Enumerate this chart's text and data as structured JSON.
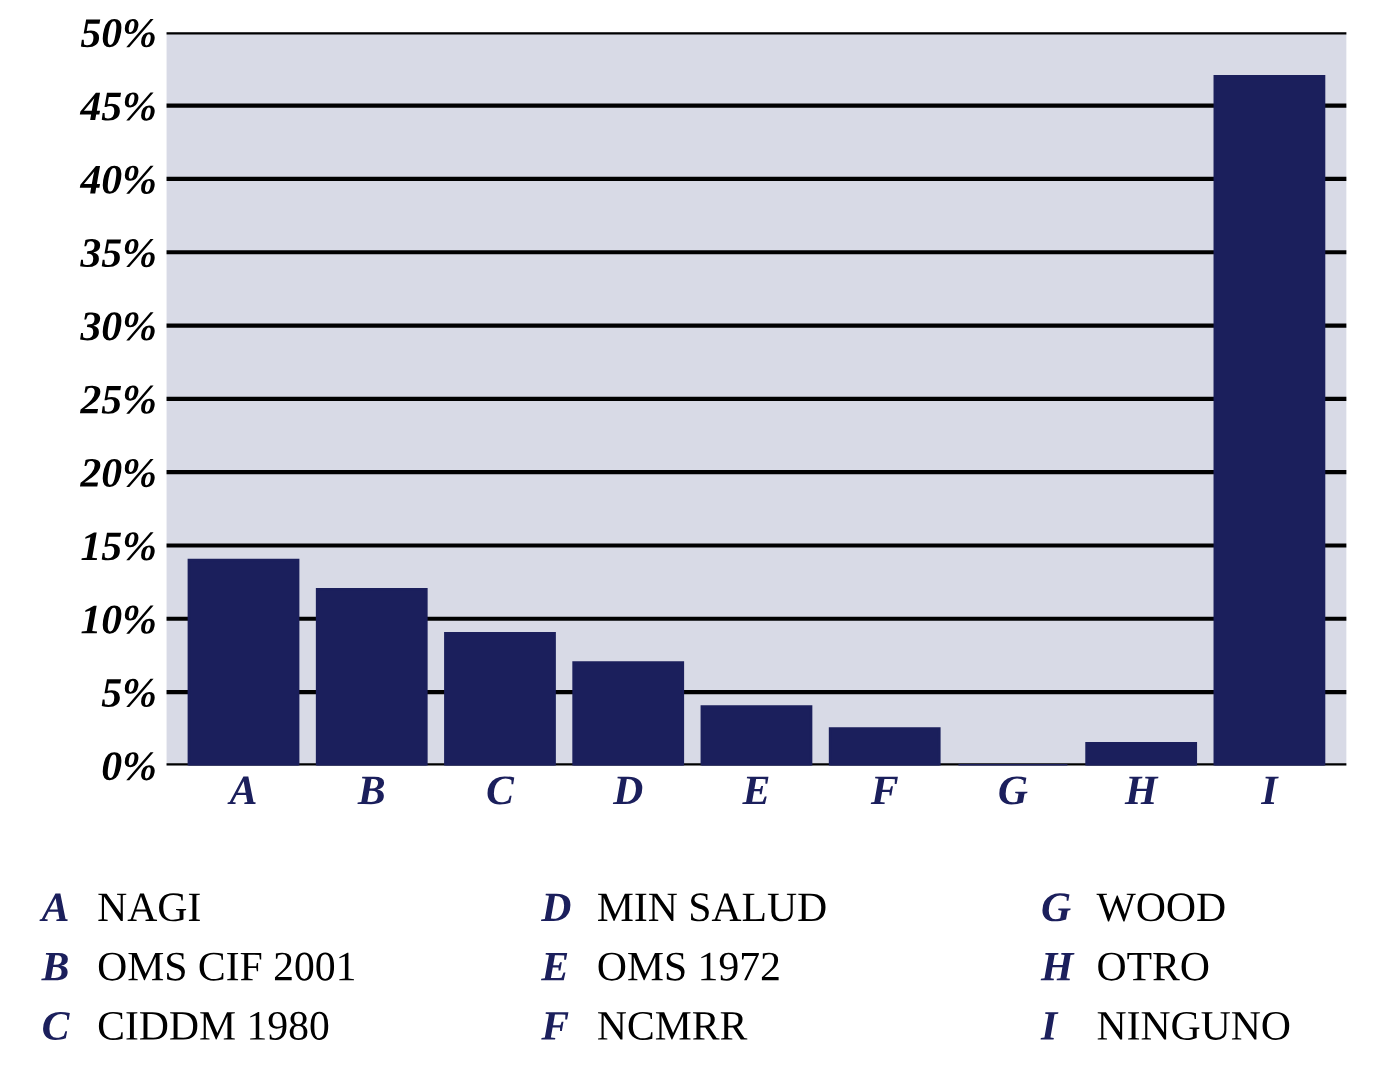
{
  "chart_data": {
    "type": "bar",
    "categories": [
      "A",
      "B",
      "C",
      "D",
      "E",
      "F",
      "G",
      "H",
      "I"
    ],
    "values": [
      14,
      12,
      9,
      7,
      4,
      2.5,
      0,
      1.5,
      47
    ],
    "color": "#1b1f5c",
    "ylim": [
      0,
      50
    ],
    "yticks": [
      {
        "value": 0,
        "label": "0%"
      },
      {
        "value": 5,
        "label": "5%"
      },
      {
        "value": 10,
        "label": "10%"
      },
      {
        "value": 15,
        "label": "15%"
      },
      {
        "value": 20,
        "label": "20%"
      },
      {
        "value": 25,
        "label": "25%"
      },
      {
        "value": 30,
        "label": "30%"
      },
      {
        "value": 35,
        "label": "35%"
      },
      {
        "value": 40,
        "label": "40%"
      },
      {
        "value": 45,
        "label": "45%"
      },
      {
        "value": 50,
        "label": "50%"
      }
    ],
    "grid": "y",
    "annotations": [
      "NAGI",
      "OMS CIF 2001",
      "CIDDM 1980",
      "MIN SALUD",
      "OMS 1972",
      "NCMRR",
      "WOOD",
      "OTRO",
      "NINGUNO"
    ]
  }
}
